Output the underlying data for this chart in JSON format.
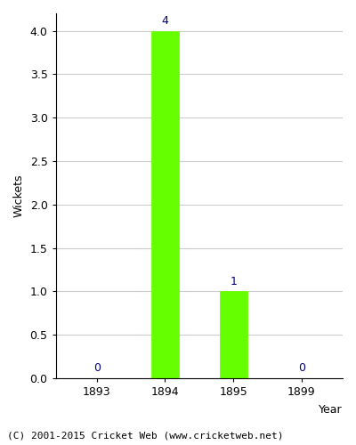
{
  "years": [
    1893,
    1894,
    1895,
    1899
  ],
  "wickets": [
    0,
    4,
    1,
    0
  ],
  "bar_color": "#66ff00",
  "bar_edgecolor": "#66ff00",
  "xlabel": "Year",
  "ylabel": "Wickets",
  "ylim": [
    0,
    4.2
  ],
  "yticks": [
    0.0,
    0.5,
    1.0,
    1.5,
    2.0,
    2.5,
    3.0,
    3.5,
    4.0
  ],
  "label_color": "#000080",
  "label_fontsize": 9,
  "axis_label_fontsize": 9,
  "tick_fontsize": 9,
  "footer": "(C) 2001-2015 Cricket Web (www.cricketweb.net)",
  "footer_fontsize": 8,
  "bg_color": "#ffffff",
  "grid_color": "#cccccc",
  "bar_width": 0.4
}
